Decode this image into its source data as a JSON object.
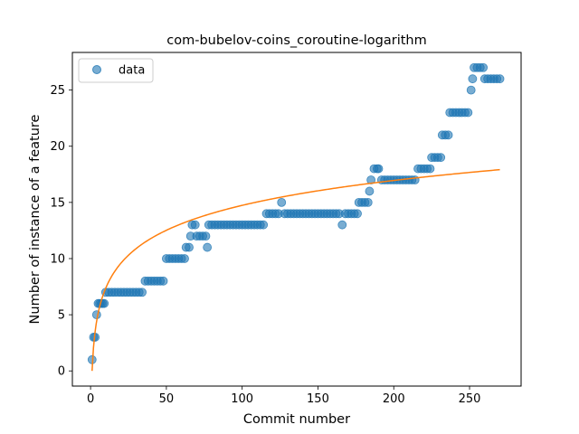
{
  "chart_data": {
    "type": "scatter",
    "title": "com-bubelov-coins_coroutine-logarithm",
    "xlabel": "Commit number",
    "ylabel": "Number of instance of a feature",
    "xlim": [
      -12,
      284
    ],
    "ylim": [
      -1.35,
      28.35
    ],
    "xticks": [
      0,
      50,
      100,
      150,
      200,
      250
    ],
    "yticks": [
      0,
      5,
      10,
      15,
      20,
      25
    ],
    "legend": {
      "position": "top-left",
      "entries": [
        "data"
      ]
    },
    "colors": {
      "scatter": "#1f77b4",
      "fit": "#ff7f0e"
    },
    "series": [
      {
        "name": "data",
        "kind": "scatter",
        "points": [
          [
            1,
            1
          ],
          [
            2,
            3
          ],
          [
            3,
            3
          ],
          [
            4,
            5
          ],
          [
            5,
            6
          ],
          [
            6,
            6
          ],
          [
            7,
            6
          ],
          [
            8,
            6
          ],
          [
            9,
            6
          ],
          [
            10,
            7
          ],
          [
            12,
            7
          ],
          [
            14,
            7
          ],
          [
            16,
            7
          ],
          [
            18,
            7
          ],
          [
            20,
            7
          ],
          [
            22,
            7
          ],
          [
            24,
            7
          ],
          [
            26,
            7
          ],
          [
            28,
            7
          ],
          [
            30,
            7
          ],
          [
            32,
            7
          ],
          [
            34,
            7
          ],
          [
            36,
            8
          ],
          [
            38,
            8
          ],
          [
            40,
            8
          ],
          [
            42,
            8
          ],
          [
            44,
            8
          ],
          [
            46,
            8
          ],
          [
            48,
            8
          ],
          [
            50,
            10
          ],
          [
            52,
            10
          ],
          [
            54,
            10
          ],
          [
            56,
            10
          ],
          [
            58,
            10
          ],
          [
            60,
            10
          ],
          [
            62,
            10
          ],
          [
            63,
            11
          ],
          [
            65,
            11
          ],
          [
            66,
            12
          ],
          [
            67,
            13
          ],
          [
            69,
            13
          ],
          [
            70,
            12
          ],
          [
            72,
            12
          ],
          [
            74,
            12
          ],
          [
            76,
            12
          ],
          [
            77,
            11
          ],
          [
            78,
            13
          ],
          [
            80,
            13
          ],
          [
            82,
            13
          ],
          [
            84,
            13
          ],
          [
            86,
            13
          ],
          [
            88,
            13
          ],
          [
            90,
            13
          ],
          [
            92,
            13
          ],
          [
            94,
            13
          ],
          [
            96,
            13
          ],
          [
            98,
            13
          ],
          [
            100,
            13
          ],
          [
            102,
            13
          ],
          [
            104,
            13
          ],
          [
            106,
            13
          ],
          [
            108,
            13
          ],
          [
            110,
            13
          ],
          [
            112,
            13
          ],
          [
            114,
            13
          ],
          [
            116,
            14
          ],
          [
            118,
            14
          ],
          [
            120,
            14
          ],
          [
            122,
            14
          ],
          [
            124,
            14
          ],
          [
            126,
            15
          ],
          [
            128,
            14
          ],
          [
            130,
            14
          ],
          [
            132,
            14
          ],
          [
            134,
            14
          ],
          [
            136,
            14
          ],
          [
            138,
            14
          ],
          [
            140,
            14
          ],
          [
            142,
            14
          ],
          [
            144,
            14
          ],
          [
            146,
            14
          ],
          [
            148,
            14
          ],
          [
            150,
            14
          ],
          [
            152,
            14
          ],
          [
            154,
            14
          ],
          [
            156,
            14
          ],
          [
            158,
            14
          ],
          [
            160,
            14
          ],
          [
            162,
            14
          ],
          [
            164,
            14
          ],
          [
            166,
            13
          ],
          [
            168,
            14
          ],
          [
            170,
            14
          ],
          [
            172,
            14
          ],
          [
            174,
            14
          ],
          [
            176,
            14
          ],
          [
            177,
            15
          ],
          [
            179,
            15
          ],
          [
            181,
            15
          ],
          [
            183,
            15
          ],
          [
            184,
            16
          ],
          [
            185,
            17
          ],
          [
            187,
            18
          ],
          [
            189,
            18
          ],
          [
            190,
            18
          ],
          [
            192,
            17
          ],
          [
            194,
            17
          ],
          [
            196,
            17
          ],
          [
            198,
            17
          ],
          [
            200,
            17
          ],
          [
            202,
            17
          ],
          [
            204,
            17
          ],
          [
            206,
            17
          ],
          [
            208,
            17
          ],
          [
            210,
            17
          ],
          [
            212,
            17
          ],
          [
            214,
            17
          ],
          [
            216,
            18
          ],
          [
            218,
            18
          ],
          [
            220,
            18
          ],
          [
            222,
            18
          ],
          [
            224,
            18
          ],
          [
            225,
            19
          ],
          [
            227,
            19
          ],
          [
            229,
            19
          ],
          [
            231,
            19
          ],
          [
            232,
            21
          ],
          [
            234,
            21
          ],
          [
            236,
            21
          ],
          [
            237,
            23
          ],
          [
            239,
            23
          ],
          [
            241,
            23
          ],
          [
            243,
            23
          ],
          [
            245,
            23
          ],
          [
            247,
            23
          ],
          [
            249,
            23
          ],
          [
            251,
            25
          ],
          [
            252,
            26
          ],
          [
            253,
            27
          ],
          [
            255,
            27
          ],
          [
            257,
            27
          ],
          [
            259,
            27
          ],
          [
            260,
            26
          ],
          [
            262,
            26
          ],
          [
            264,
            26
          ],
          [
            266,
            26
          ],
          [
            268,
            26
          ],
          [
            270,
            26
          ]
        ]
      },
      {
        "name": "",
        "kind": "line",
        "model": "y = a * ln(x) + b",
        "a": 3.2,
        "b": 0,
        "x_range": [
          1,
          270
        ]
      }
    ]
  }
}
